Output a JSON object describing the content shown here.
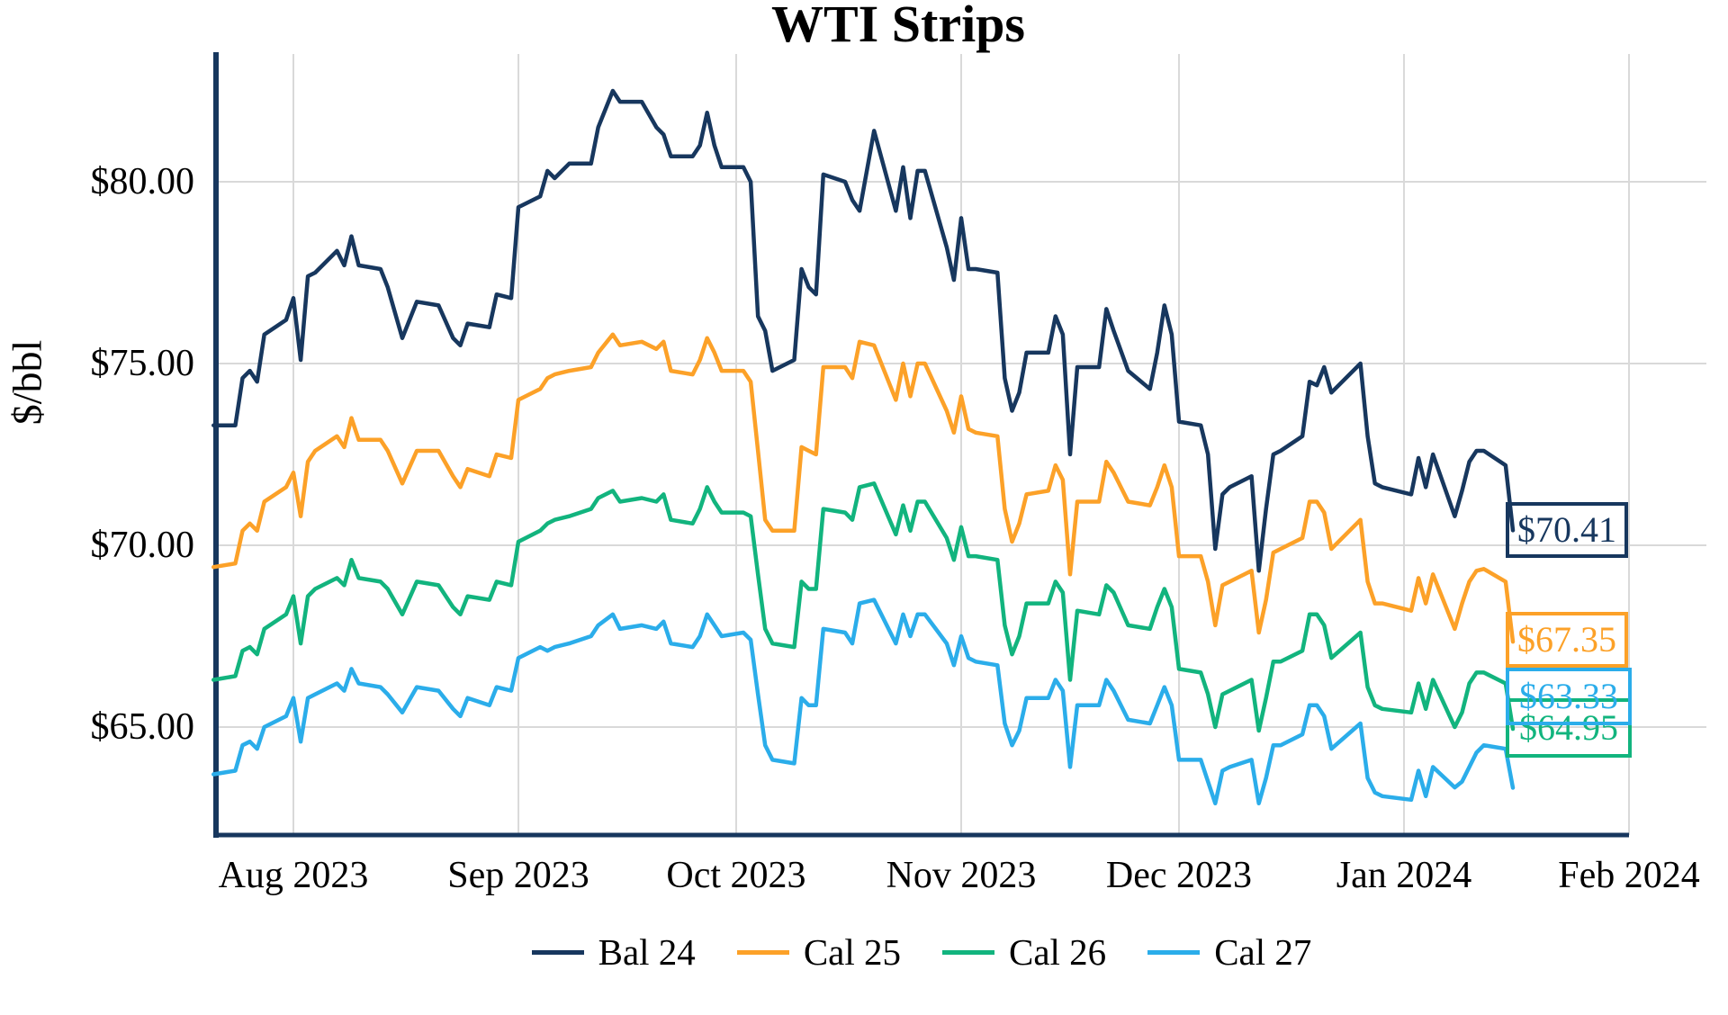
{
  "chart": {
    "title": "WTI Strips",
    "y_axis_label": "$/bbl"
  },
  "colors": {
    "bal24": "#17375e",
    "cal25": "#fca128",
    "cal26": "#12b47e",
    "cal27": "#2badea",
    "grid": "#d9d9d9",
    "axis": "#17375e"
  },
  "end_labels": {
    "bal24": "$70.41",
    "cal25": "$67.35",
    "cal27": "$63.33",
    "cal26": "$64.95"
  },
  "chart_data": {
    "type": "line",
    "title": "WTI Strips",
    "xlabel": "",
    "ylabel": "$/bbl",
    "grid": true,
    "legend_position": "bottom",
    "ylim": [
      62.0,
      83.5
    ],
    "y_ticks": [
      {
        "label": "$80.00",
        "value": 80
      },
      {
        "label": "$75.00",
        "value": 75
      },
      {
        "label": "$70.00",
        "value": 70
      },
      {
        "label": "$65.00",
        "value": 65
      }
    ],
    "x_ticks": [
      {
        "label": "Aug 2023",
        "date": "2023-08-01"
      },
      {
        "label": "Sep 2023",
        "date": "2023-09-01"
      },
      {
        "label": "Oct 2023",
        "date": "2023-10-01"
      },
      {
        "label": "Nov 2023",
        "date": "2023-11-01"
      },
      {
        "label": "Dec 2023",
        "date": "2023-12-01"
      },
      {
        "label": "Jan 2024",
        "date": "2024-01-01"
      },
      {
        "label": "Feb 2024",
        "date": "2024-02-01"
      }
    ],
    "dates": [
      "2023-07-21",
      "2023-07-24",
      "2023-07-25",
      "2023-07-26",
      "2023-07-27",
      "2023-07-28",
      "2023-07-31",
      "2023-08-01",
      "2023-08-02",
      "2023-08-03",
      "2023-08-04",
      "2023-08-07",
      "2023-08-08",
      "2023-08-09",
      "2023-08-10",
      "2023-08-13",
      "2023-08-14",
      "2023-08-16",
      "2023-08-18",
      "2023-08-21",
      "2023-08-23",
      "2023-08-24",
      "2023-08-25",
      "2023-08-28",
      "2023-08-29",
      "2023-08-31",
      "2023-09-01",
      "2023-09-04",
      "2023-09-05",
      "2023-09-06",
      "2023-09-08",
      "2023-09-11",
      "2023-09-12",
      "2023-09-14",
      "2023-09-15",
      "2023-09-18",
      "2023-09-20",
      "2023-09-21",
      "2023-09-22",
      "2023-09-25",
      "2023-09-26",
      "2023-09-27",
      "2023-09-28",
      "2023-09-29",
      "2023-10-02",
      "2023-10-03",
      "2023-10-04",
      "2023-10-05",
      "2023-10-06",
      "2023-10-09",
      "2023-10-10",
      "2023-10-11",
      "2023-10-12",
      "2023-10-13",
      "2023-10-16",
      "2023-10-17",
      "2023-10-18",
      "2023-10-20",
      "2023-10-23",
      "2023-10-24",
      "2023-10-25",
      "2023-10-26",
      "2023-10-27",
      "2023-10-30",
      "2023-10-31",
      "2023-11-01",
      "2023-11-02",
      "2023-11-03",
      "2023-11-06",
      "2023-11-07",
      "2023-11-08",
      "2023-11-09",
      "2023-11-10",
      "2023-11-13",
      "2023-11-14",
      "2023-11-15",
      "2023-11-16",
      "2023-11-17",
      "2023-11-20",
      "2023-11-21",
      "2023-11-22",
      "2023-11-24",
      "2023-11-27",
      "2023-11-28",
      "2023-11-29",
      "2023-11-30",
      "2023-12-01",
      "2023-12-04",
      "2023-12-05",
      "2023-12-06",
      "2023-12-07",
      "2023-12-08",
      "2023-12-11",
      "2023-12-12",
      "2023-12-13",
      "2023-12-14",
      "2023-12-15",
      "2023-12-18",
      "2023-12-19",
      "2023-12-20",
      "2023-12-21",
      "2023-12-22",
      "2023-12-26",
      "2023-12-27",
      "2023-12-28",
      "2023-12-29",
      "2024-01-02",
      "2024-01-03",
      "2024-01-04",
      "2024-01-05",
      "2024-01-08",
      "2024-01-09",
      "2024-01-10",
      "2024-01-11",
      "2024-01-12",
      "2024-01-15",
      "2024-01-16"
    ],
    "series": [
      {
        "name": "Bal 24",
        "key": "bal24",
        "final_value": 70.41,
        "values": [
          73.3,
          73.3,
          74.6,
          74.8,
          74.5,
          75.8,
          76.2,
          76.8,
          75.1,
          77.4,
          77.5,
          78.1,
          77.7,
          78.5,
          77.7,
          77.6,
          77.1,
          75.7,
          76.7,
          76.6,
          75.7,
          75.5,
          76.1,
          76.0,
          76.9,
          76.8,
          79.3,
          79.6,
          80.3,
          80.1,
          80.5,
          80.5,
          81.5,
          82.5,
          82.2,
          82.2,
          81.5,
          81.3,
          80.7,
          80.7,
          81.0,
          81.9,
          81.0,
          80.4,
          80.4,
          80.0,
          76.3,
          75.9,
          74.8,
          75.1,
          77.6,
          77.1,
          76.9,
          80.2,
          80.0,
          79.5,
          79.2,
          81.4,
          79.2,
          80.4,
          79.0,
          80.3,
          80.3,
          78.2,
          77.3,
          79.0,
          77.6,
          77.6,
          77.5,
          74.6,
          73.7,
          74.2,
          75.3,
          75.3,
          76.3,
          75.8,
          72.5,
          74.9,
          74.9,
          76.5,
          75.9,
          74.8,
          74.3,
          75.3,
          76.6,
          75.8,
          73.4,
          73.3,
          72.5,
          69.9,
          71.4,
          71.6,
          71.9,
          69.3,
          71.0,
          72.5,
          72.6,
          73.0,
          74.5,
          74.4,
          74.9,
          74.2,
          75.0,
          73.0,
          71.7,
          71.6,
          71.4,
          72.4,
          71.6,
          72.5,
          70.8,
          71.5,
          72.3,
          72.6,
          72.6,
          72.2,
          70.41
        ]
      },
      {
        "name": "Cal 25",
        "key": "cal25",
        "final_value": 67.35,
        "values": [
          69.4,
          69.5,
          70.4,
          70.6,
          70.4,
          71.2,
          71.6,
          72.0,
          70.8,
          72.3,
          72.6,
          73.0,
          72.7,
          73.5,
          72.9,
          72.9,
          72.6,
          71.7,
          72.6,
          72.6,
          71.9,
          71.6,
          72.1,
          71.9,
          72.5,
          72.4,
          74.0,
          74.3,
          74.6,
          74.7,
          74.8,
          74.9,
          75.3,
          75.8,
          75.5,
          75.6,
          75.4,
          75.6,
          74.8,
          74.7,
          75.1,
          75.7,
          75.3,
          74.8,
          74.8,
          74.5,
          72.6,
          70.7,
          70.4,
          70.4,
          72.7,
          72.6,
          72.5,
          74.9,
          74.9,
          74.6,
          75.6,
          75.5,
          74.0,
          75.0,
          74.1,
          75.0,
          75.0,
          73.7,
          73.1,
          74.1,
          73.2,
          73.1,
          73.0,
          71.0,
          70.1,
          70.6,
          71.4,
          71.5,
          72.2,
          71.8,
          69.2,
          71.2,
          71.2,
          72.3,
          72.0,
          71.2,
          71.1,
          71.6,
          72.2,
          71.6,
          69.7,
          69.7,
          69.0,
          67.8,
          68.9,
          69.0,
          69.3,
          67.6,
          68.5,
          69.8,
          69.9,
          70.2,
          71.2,
          71.2,
          70.9,
          69.9,
          70.7,
          69.0,
          68.4,
          68.4,
          68.2,
          69.1,
          68.4,
          69.2,
          67.7,
          68.4,
          69.0,
          69.3,
          69.35,
          69.0,
          67.35
        ]
      },
      {
        "name": "Cal 26",
        "key": "cal26",
        "final_value": 64.95,
        "values": [
          66.3,
          66.4,
          67.1,
          67.2,
          67.0,
          67.7,
          68.1,
          68.6,
          67.3,
          68.6,
          68.8,
          69.1,
          68.9,
          69.6,
          69.1,
          69.0,
          68.8,
          68.1,
          69.0,
          68.9,
          68.3,
          68.1,
          68.6,
          68.5,
          69.0,
          68.9,
          70.1,
          70.4,
          70.6,
          70.7,
          70.8,
          71.0,
          71.3,
          71.5,
          71.2,
          71.3,
          71.2,
          71.4,
          70.7,
          70.6,
          71.0,
          71.6,
          71.2,
          70.9,
          70.9,
          70.8,
          69.2,
          67.7,
          67.3,
          67.2,
          69.0,
          68.8,
          68.8,
          71.0,
          70.9,
          70.7,
          71.6,
          71.7,
          70.3,
          71.1,
          70.4,
          71.2,
          71.2,
          70.2,
          69.6,
          70.5,
          69.7,
          69.7,
          69.6,
          67.8,
          67.0,
          67.5,
          68.4,
          68.4,
          69.0,
          68.7,
          66.3,
          68.2,
          68.1,
          68.9,
          68.7,
          67.8,
          67.7,
          68.3,
          68.8,
          68.3,
          66.6,
          66.5,
          65.9,
          65.0,
          65.9,
          66.0,
          66.3,
          64.9,
          65.8,
          66.8,
          66.8,
          67.1,
          68.1,
          68.1,
          67.8,
          66.9,
          67.6,
          66.1,
          65.6,
          65.5,
          65.4,
          66.2,
          65.5,
          66.3,
          65.0,
          65.4,
          66.2,
          66.5,
          66.5,
          66.2,
          64.95
        ]
      },
      {
        "name": "Cal 27",
        "key": "cal27",
        "final_value": 63.33,
        "values": [
          63.7,
          63.8,
          64.5,
          64.6,
          64.4,
          65.0,
          65.3,
          65.8,
          64.6,
          65.8,
          65.9,
          66.2,
          66.0,
          66.6,
          66.2,
          66.1,
          65.9,
          65.4,
          66.1,
          66.0,
          65.5,
          65.3,
          65.8,
          65.6,
          66.1,
          66.0,
          66.9,
          67.2,
          67.1,
          67.2,
          67.3,
          67.5,
          67.8,
          68.1,
          67.7,
          67.8,
          67.7,
          67.9,
          67.3,
          67.2,
          67.5,
          68.1,
          67.8,
          67.5,
          67.6,
          67.4,
          65.9,
          64.5,
          64.1,
          64.0,
          65.8,
          65.6,
          65.6,
          67.7,
          67.6,
          67.3,
          68.4,
          68.5,
          67.3,
          68.1,
          67.5,
          68.1,
          68.1,
          67.3,
          66.7,
          67.5,
          66.9,
          66.8,
          66.7,
          65.1,
          64.5,
          64.9,
          65.8,
          65.8,
          66.3,
          66.0,
          63.9,
          65.6,
          65.6,
          66.3,
          66.0,
          65.2,
          65.1,
          65.6,
          66.1,
          65.6,
          64.1,
          64.1,
          63.5,
          62.9,
          63.8,
          63.9,
          64.1,
          62.9,
          63.6,
          64.5,
          64.5,
          64.8,
          65.6,
          65.6,
          65.3,
          64.4,
          65.1,
          63.6,
          63.2,
          63.1,
          63.0,
          63.8,
          63.1,
          63.9,
          63.34,
          63.5,
          63.9,
          64.3,
          64.5,
          64.4,
          63.33
        ]
      }
    ]
  }
}
